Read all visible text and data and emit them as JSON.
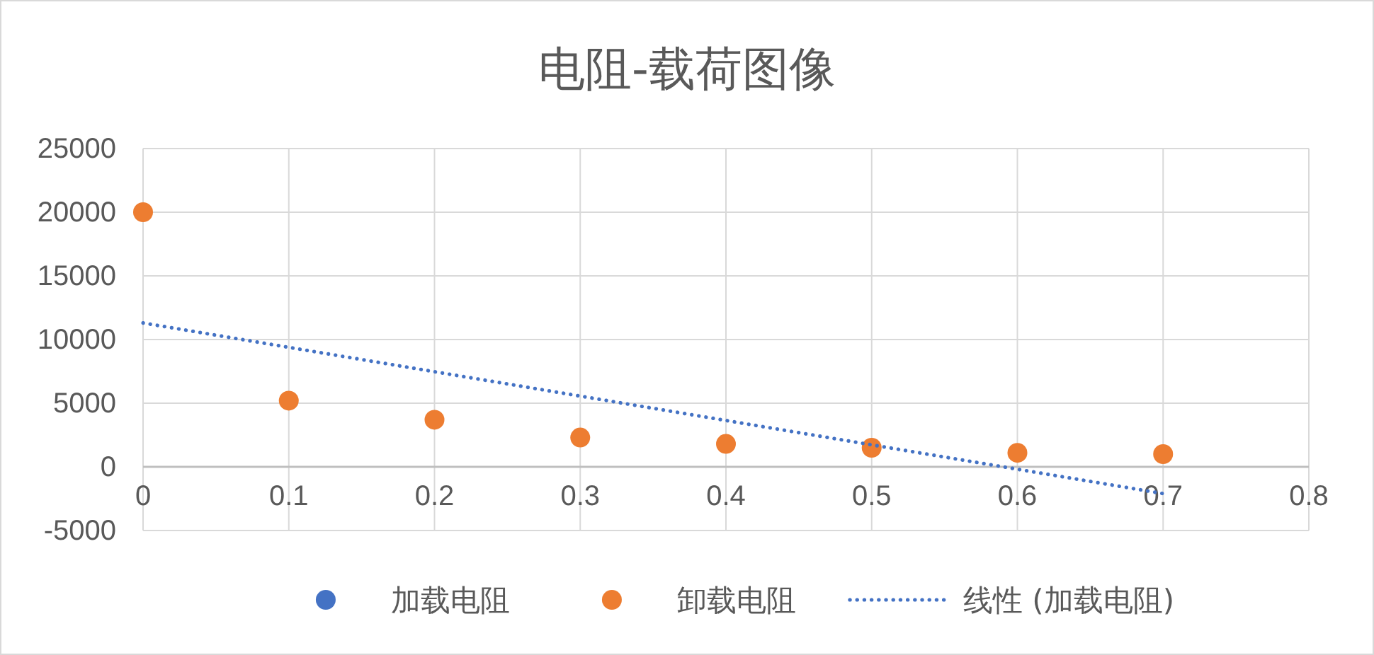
{
  "chart_data": {
    "type": "scatter",
    "title": "电阻-载荷图像",
    "x": [
      0,
      0.1,
      0.2,
      0.3,
      0.4,
      0.5,
      0.6,
      0.7
    ],
    "series": [
      {
        "name": "加载电阻",
        "color": "#4472c4",
        "values": [
          null,
          null,
          null,
          null,
          null,
          null,
          null,
          null
        ]
      },
      {
        "name": "卸载电阻",
        "color": "#ed7d31",
        "values": [
          20000,
          5200,
          3700,
          2300,
          1800,
          1500,
          1100,
          1000
        ]
      },
      {
        "name": "线性 (加载电阻)",
        "type": "line",
        "color": "#4472c4",
        "x": [
          0,
          0.7
        ],
        "values": [
          11300,
          -2100
        ],
        "line_style": "dotted",
        "marker": "none"
      }
    ],
    "xlim": [
      0,
      0.8
    ],
    "xticks": [
      0,
      0.1,
      0.2,
      0.3,
      0.4,
      0.5,
      0.6,
      0.7,
      0.8
    ],
    "ylim": [
      -5000,
      25000
    ],
    "yticks": [
      -5000,
      0,
      5000,
      10000,
      15000,
      20000,
      25000
    ],
    "grid": true,
    "legend": "bottom",
    "marker": "circle"
  }
}
